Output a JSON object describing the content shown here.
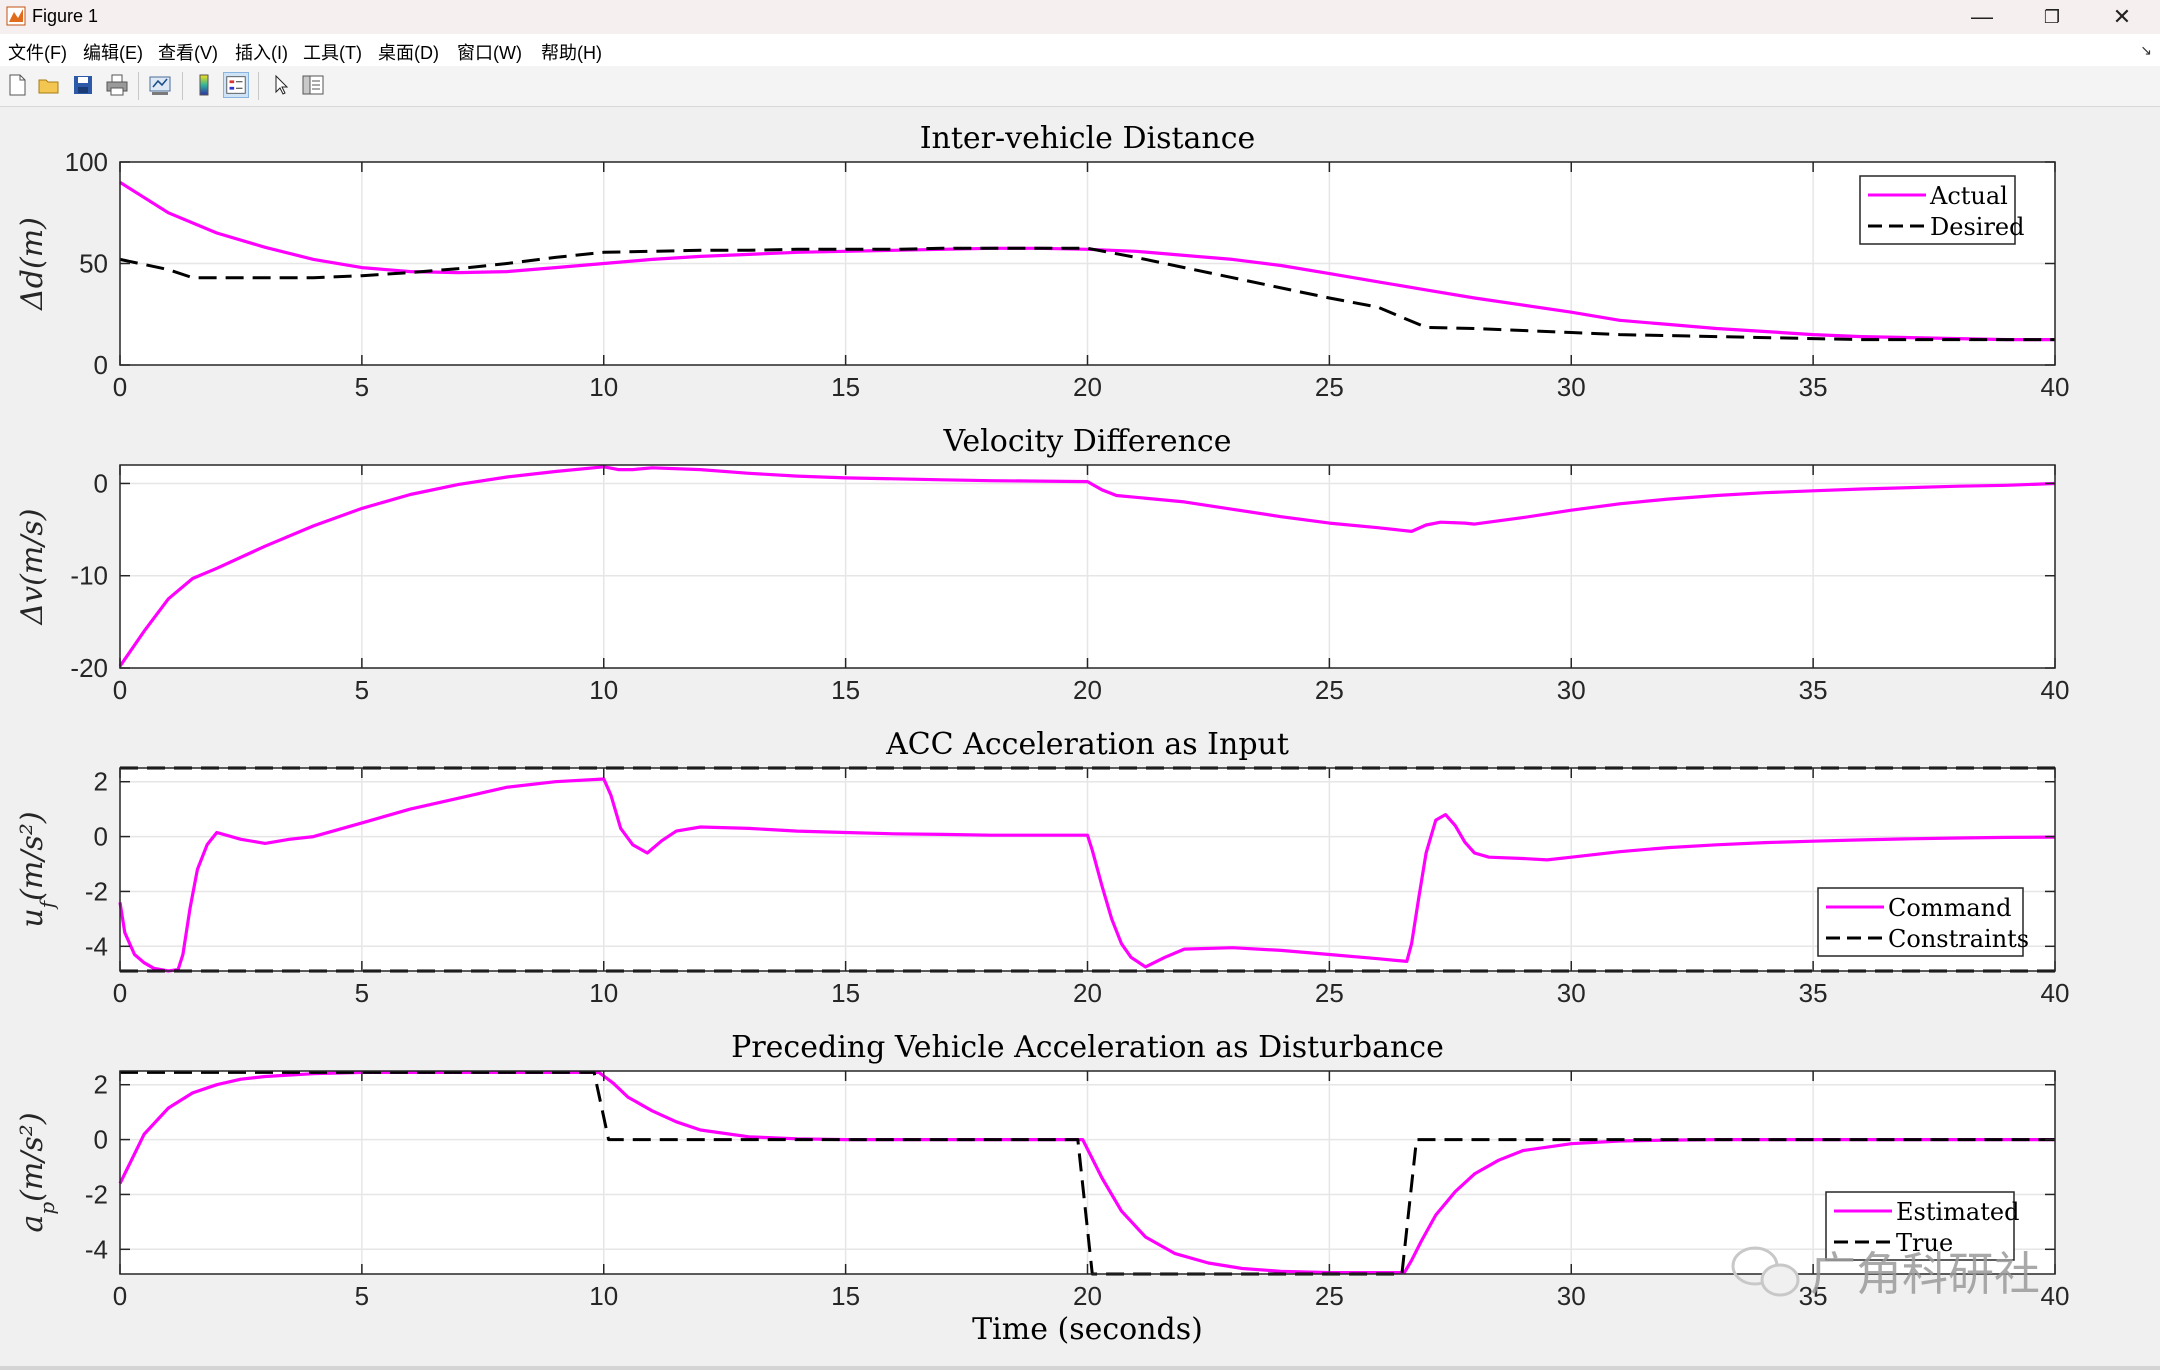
{
  "window": {
    "title": "Figure 1",
    "controls": {
      "minimize": "—",
      "restore": "❐",
      "close": "✕"
    }
  },
  "menu": [
    "文件(F)",
    "编辑(E)",
    "查看(V)",
    "插入(I)",
    "工具(T)",
    "桌面(D)",
    "窗口(W)",
    "帮助(H)"
  ],
  "menu_dock_glyph": "↘",
  "toolbar": [
    "new-figure",
    "open-file",
    "save",
    "print",
    "link-plot",
    "colorbar",
    "legend",
    "edit-plot",
    "property-inspector"
  ],
  "watermark": {
    "text": "广角科研社"
  },
  "colors": {
    "actual": "#ff00ff",
    "desired": "#000000",
    "grid": "#e6e6e6",
    "axes_bg": "#ffffff",
    "figure_bg": "#f0f0f0"
  },
  "chart_data": [
    {
      "type": "line",
      "title": "Inter-vehicle Distance",
      "xlabel": "",
      "ylabel": "Δd(m)",
      "xlim": [
        0,
        40
      ],
      "ylim": [
        0,
        100
      ],
      "xticks": [
        0,
        5,
        10,
        15,
        20,
        25,
        30,
        35,
        40
      ],
      "yticks": [
        0,
        50,
        100
      ],
      "grid": true,
      "legend": "top-right",
      "series": [
        {
          "name": "Actual",
          "style": "solid",
          "x": [
            0,
            1,
            2,
            3,
            4,
            5,
            6,
            7,
            8,
            9,
            10,
            11,
            12,
            13,
            14,
            15,
            16,
            17,
            18,
            19,
            20,
            21,
            22,
            23,
            24,
            25,
            26,
            27,
            28,
            29,
            30,
            31,
            32,
            33,
            34,
            35,
            36,
            37,
            38,
            39,
            40
          ],
          "y": [
            90,
            75,
            65,
            58,
            52,
            48,
            46,
            45.5,
            46,
            48,
            50,
            52,
            53.5,
            54.5,
            55.5,
            56,
            56.5,
            57,
            57.5,
            57.5,
            57,
            56,
            54,
            52,
            49,
            45,
            41,
            37,
            33,
            29.5,
            26,
            22,
            20,
            18,
            16.5,
            15,
            14,
            13.5,
            13,
            12.5,
            12.5
          ]
        },
        {
          "name": "Desired",
          "style": "dashed",
          "x": [
            0,
            1,
            1.5,
            2,
            3,
            4,
            5,
            6,
            7,
            8,
            9,
            10,
            11,
            12,
            13,
            14,
            15,
            16,
            17,
            18,
            19,
            20,
            21,
            22,
            23,
            24,
            25,
            26,
            27,
            28,
            29,
            30,
            31,
            32,
            33,
            34,
            35,
            36,
            37,
            38,
            39,
            40
          ],
          "y": [
            52,
            47,
            43,
            43,
            43,
            43,
            44,
            45.5,
            47.5,
            50,
            53,
            55.5,
            56,
            56.5,
            56.5,
            57,
            57,
            57,
            57.5,
            57.5,
            57.5,
            57.5,
            53,
            48,
            43,
            38,
            33,
            28.5,
            18.5,
            18,
            17,
            16,
            15,
            14.5,
            14,
            13.5,
            13,
            12.5,
            12.5,
            12.5,
            12.5,
            12.5
          ]
        }
      ]
    },
    {
      "type": "line",
      "title": "Velocity Difference",
      "xlabel": "",
      "ylabel": "Δv(m/s)",
      "xlim": [
        0,
        40
      ],
      "ylim": [
        -20,
        2
      ],
      "xticks": [
        0,
        5,
        10,
        15,
        20,
        25,
        30,
        35,
        40
      ],
      "yticks": [
        -20,
        -10,
        0
      ],
      "grid": true,
      "series": [
        {
          "name": "Actual",
          "style": "solid",
          "x": [
            0,
            0.5,
            1,
            1.5,
            2,
            3,
            4,
            5,
            6,
            7,
            8,
            9,
            10,
            10.3,
            10.6,
            11,
            12,
            13,
            14,
            15,
            16,
            17,
            18,
            19,
            20,
            20.3,
            20.6,
            21,
            22,
            23,
            24,
            25,
            26,
            26.7,
            27,
            27.3,
            27.8,
            28,
            29,
            30,
            31,
            32,
            33,
            34,
            35,
            36,
            37,
            38,
            39,
            40
          ],
          "y": [
            -19.8,
            -16,
            -12.5,
            -10.3,
            -9.2,
            -6.8,
            -4.6,
            -2.7,
            -1.2,
            -0.1,
            0.7,
            1.3,
            1.8,
            1.5,
            1.5,
            1.7,
            1.5,
            1.1,
            0.8,
            0.6,
            0.5,
            0.4,
            0.3,
            0.25,
            0.2,
            -0.7,
            -1.3,
            -1.5,
            -2,
            -2.8,
            -3.6,
            -4.3,
            -4.8,
            -5.2,
            -4.5,
            -4.2,
            -4.3,
            -4.4,
            -3.7,
            -2.9,
            -2.2,
            -1.7,
            -1.3,
            -1,
            -0.8,
            -0.6,
            -0.45,
            -0.3,
            -0.2,
            0
          ]
        }
      ]
    },
    {
      "type": "line",
      "title": "ACC Acceleration as Input",
      "xlabel": "",
      "ylabel": "u_f(m/s²)",
      "xlim": [
        0,
        40
      ],
      "ylim": [
        -4.9,
        2.5
      ],
      "xticks": [
        0,
        5,
        10,
        15,
        20,
        25,
        30,
        35,
        40
      ],
      "yticks": [
        -4,
        -2,
        0,
        2
      ],
      "grid": true,
      "legend": "bottom-right",
      "series": [
        {
          "name": "Command",
          "style": "solid",
          "x": [
            0,
            0.1,
            0.3,
            0.5,
            0.7,
            1,
            1.2,
            1.3,
            1.45,
            1.6,
            1.8,
            2,
            2.5,
            3,
            3.5,
            4,
            5,
            6,
            7,
            8,
            9,
            10,
            10.15,
            10.35,
            10.6,
            10.9,
            11.2,
            11.5,
            12,
            13,
            14,
            15,
            16,
            17,
            18,
            19,
            20,
            20.1,
            20.3,
            20.5,
            20.7,
            20.9,
            21.2,
            21.6,
            22,
            23,
            24,
            25,
            26,
            26.6,
            26.7,
            26.85,
            27,
            27.2,
            27.4,
            27.6,
            27.8,
            28,
            28.3,
            29,
            29.5,
            30,
            31,
            32,
            33,
            34,
            35,
            36,
            37,
            38,
            39,
            40
          ],
          "y": [
            -2.4,
            -3.5,
            -4.3,
            -4.6,
            -4.8,
            -4.9,
            -4.85,
            -4.3,
            -2.6,
            -1.2,
            -0.3,
            0.15,
            -0.1,
            -0.25,
            -0.1,
            0,
            0.5,
            1,
            1.4,
            1.8,
            2,
            2.1,
            1.5,
            0.3,
            -0.3,
            -0.6,
            -0.15,
            0.2,
            0.35,
            0.3,
            0.2,
            0.15,
            0.1,
            0.08,
            0.05,
            0.05,
            0.05,
            -0.5,
            -1.8,
            -3,
            -3.9,
            -4.4,
            -4.75,
            -4.4,
            -4.1,
            -4.05,
            -4.15,
            -4.3,
            -4.45,
            -4.55,
            -3.9,
            -2.2,
            -0.6,
            0.6,
            0.8,
            0.4,
            -0.2,
            -0.6,
            -0.75,
            -0.8,
            -0.85,
            -0.75,
            -0.55,
            -0.4,
            -0.3,
            -0.22,
            -0.17,
            -0.12,
            -0.08,
            -0.05,
            -0.03,
            -0.02
          ]
        },
        {
          "name": "Constraints",
          "style": "dashed",
          "hlines": [
            2.5,
            -4.9
          ]
        }
      ]
    },
    {
      "type": "line",
      "title": "Preceding Vehicle Acceleration as Disturbance",
      "xlabel": "Time (seconds)",
      "ylabel": "a_p(m/s²)",
      "xlim": [
        0,
        40
      ],
      "ylim": [
        -4.9,
        2.5
      ],
      "xticks": [
        0,
        5,
        10,
        15,
        20,
        25,
        30,
        35,
        40
      ],
      "yticks": [
        -4,
        -2,
        0,
        2
      ],
      "grid": true,
      "legend": "bottom-right",
      "series": [
        {
          "name": "Estimated",
          "style": "solid",
          "x": [
            0,
            0.5,
            1,
            1.5,
            2,
            2.5,
            3,
            4,
            5,
            6,
            7,
            8,
            9,
            9.9,
            10.2,
            10.5,
            11,
            11.5,
            12,
            13,
            14,
            15,
            16,
            17,
            18,
            19,
            19.9,
            20.3,
            20.7,
            21.2,
            21.8,
            22.5,
            23.2,
            24,
            25,
            26,
            26.55,
            26.7,
            26.9,
            27.2,
            27.6,
            28,
            28.5,
            29,
            30,
            31,
            32,
            33,
            34,
            35,
            36,
            37,
            38,
            39,
            40
          ],
          "y": [
            -1.6,
            0.2,
            1.15,
            1.7,
            2,
            2.2,
            2.3,
            2.4,
            2.45,
            2.45,
            2.45,
            2.45,
            2.45,
            2.45,
            2.05,
            1.55,
            1.05,
            0.65,
            0.35,
            0.1,
            0.03,
            0,
            0,
            0,
            0,
            0,
            0,
            -1.4,
            -2.6,
            -3.55,
            -4.15,
            -4.5,
            -4.7,
            -4.8,
            -4.85,
            -4.85,
            -4.85,
            -4.4,
            -3.7,
            -2.75,
            -1.9,
            -1.25,
            -0.75,
            -0.4,
            -0.15,
            -0.05,
            -0.02,
            0,
            0,
            0,
            0,
            0,
            0,
            0,
            0
          ]
        },
        {
          "name": "True",
          "style": "dashed",
          "x": [
            0,
            9.8,
            10.1,
            19.8,
            20.1,
            26.5,
            26.8,
            40
          ],
          "y": [
            2.45,
            2.45,
            0,
            0,
            -4.9,
            -4.9,
            0,
            0
          ]
        }
      ]
    }
  ]
}
